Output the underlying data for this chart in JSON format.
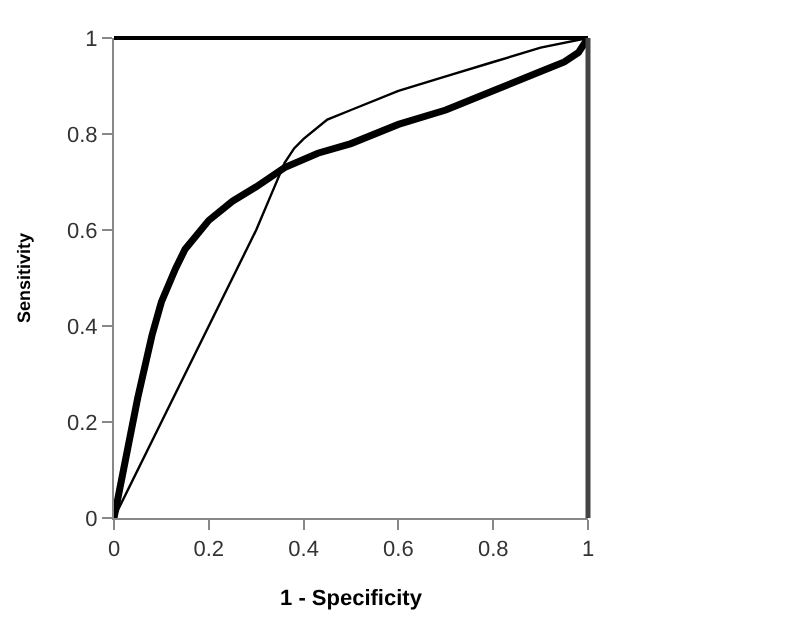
{
  "chart_data": {
    "type": "line",
    "xlabel": "1 - Specificity",
    "ylabel": "Sensitivity",
    "series": [
      {
        "color": "#000000",
        "x": [
          0,
          0.02,
          0.05,
          0.08,
          0.1,
          0.13,
          0.15,
          0.2,
          0.25,
          0.3,
          0.36,
          0.43,
          0.5,
          0.6,
          0.7,
          0.8,
          0.9,
          0.95,
          0.98,
          1
        ],
        "values": [
          0,
          0.1,
          0.25,
          0.38,
          0.45,
          0.52,
          0.56,
          0.62,
          0.66,
          0.69,
          0.73,
          0.76,
          0.78,
          0.82,
          0.85,
          0.89,
          0.93,
          0.95,
          0.97,
          1
        ]
      },
      {
        "color": "#000000",
        "x": [
          0,
          0.1,
          0.2,
          0.3,
          0.33,
          0.36,
          0.38,
          0.4,
          0.45,
          0.5,
          0.6,
          0.7,
          0.8,
          0.9,
          1
        ],
        "values": [
          0,
          0.2,
          0.4,
          0.6,
          0.67,
          0.74,
          0.77,
          0.79,
          0.83,
          0.85,
          0.89,
          0.92,
          0.95,
          0.98,
          1
        ]
      }
    ],
    "xlim": [
      0,
      1
    ],
    "ylim": [
      0,
      1
    ],
    "xticks": [
      0,
      0.2,
      0.4,
      0.6,
      0.8,
      1
    ],
    "yticks": [
      0,
      0.2,
      0.4,
      0.6,
      0.8,
      1
    ],
    "legend": false,
    "marker": "none",
    "line_style": "solid"
  }
}
